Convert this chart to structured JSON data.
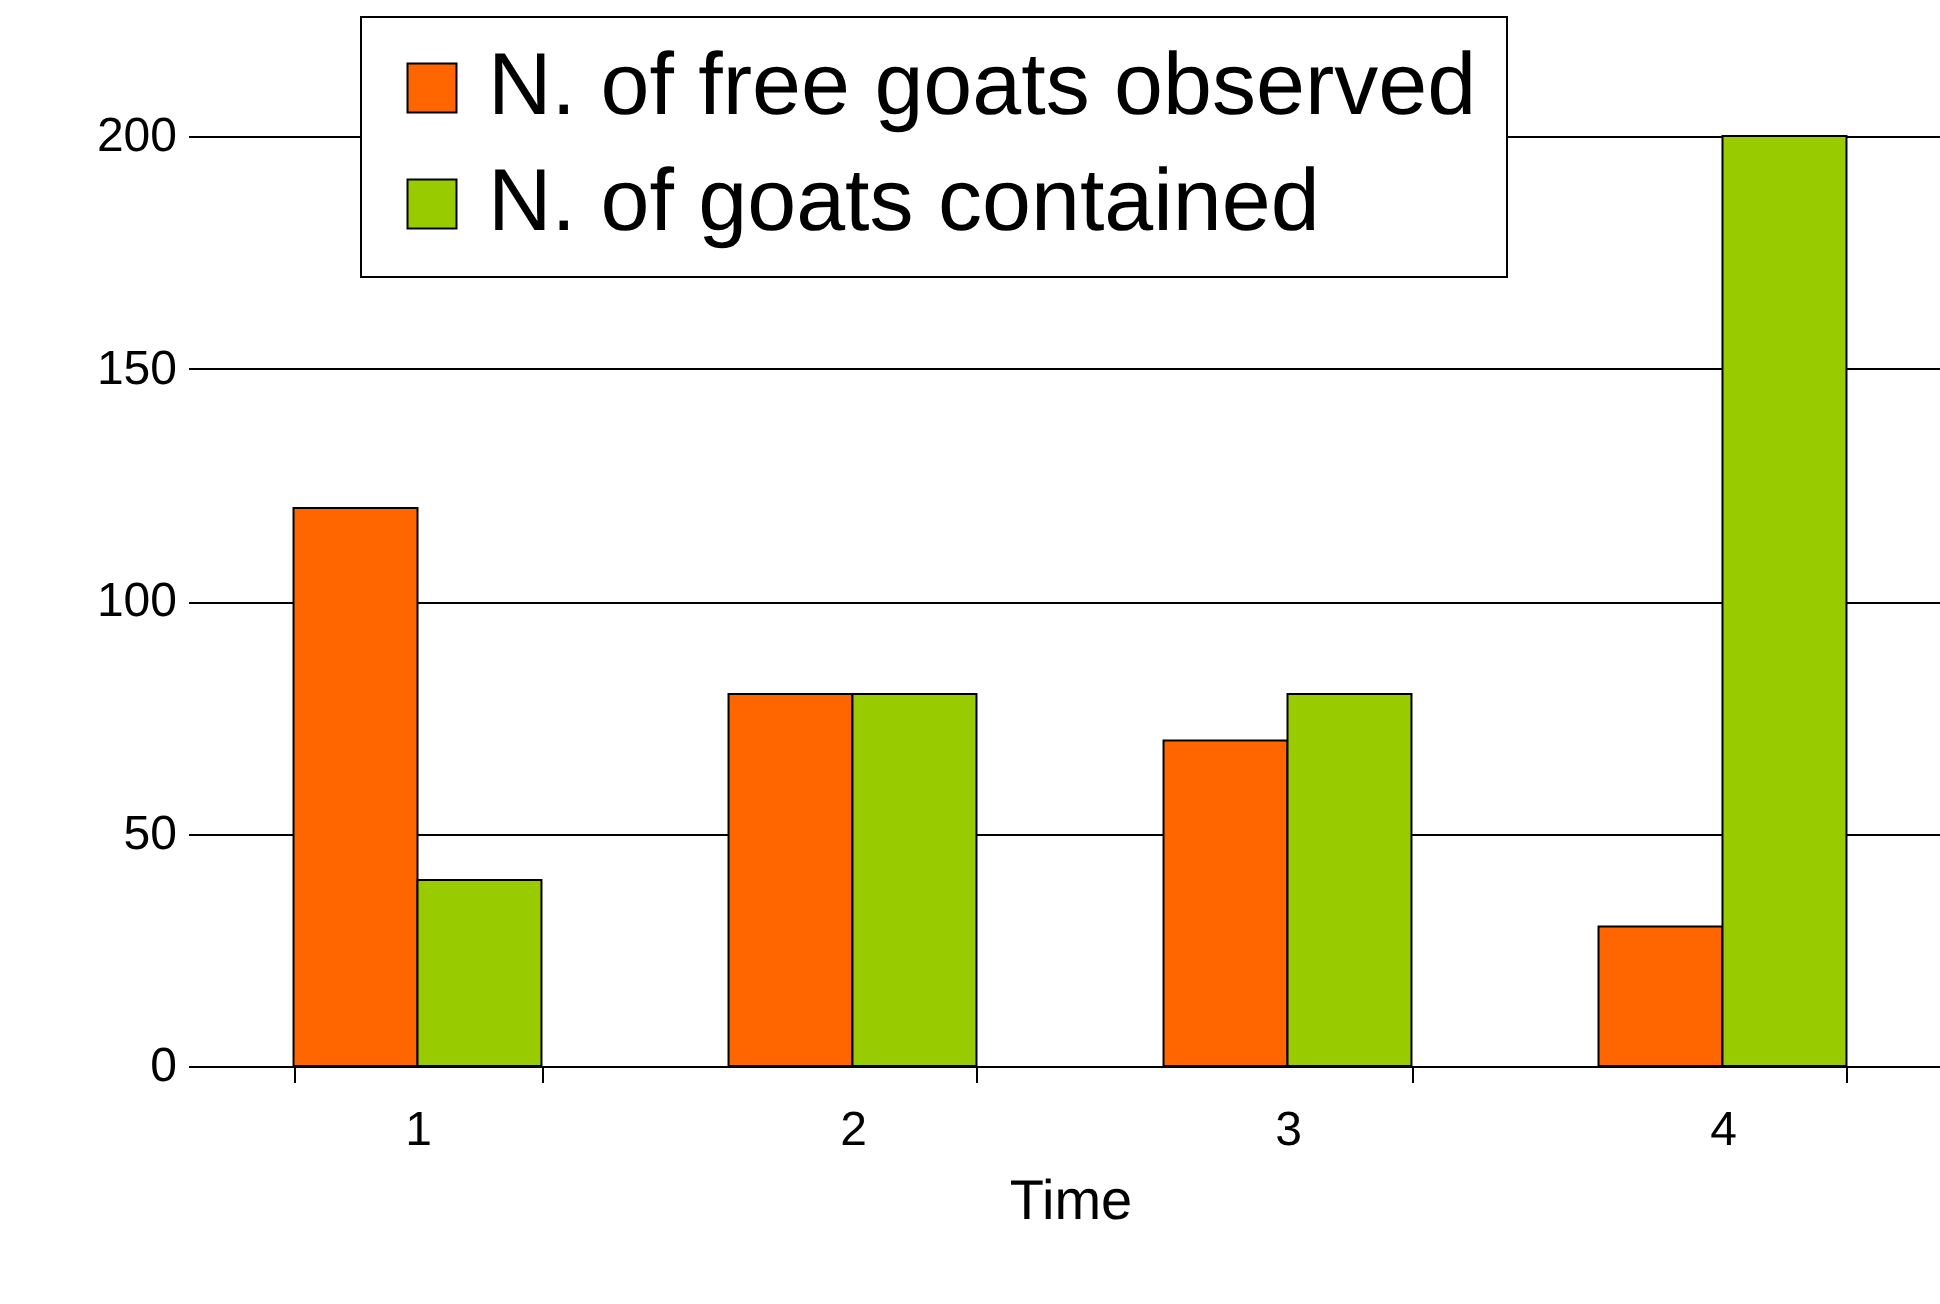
{
  "chart_data": {
    "type": "bar",
    "xlabel": "Time",
    "categories": [
      "1",
      "2",
      "3",
      "4"
    ],
    "series": [
      {
        "name": "N. of free goats observed",
        "color": "#ff6600",
        "values": [
          120,
          80,
          70,
          30
        ]
      },
      {
        "name": "N. of goats contained",
        "color": "#99cc00",
        "values": [
          40,
          80,
          80,
          200
        ]
      }
    ],
    "ylim": [
      0,
      200
    ],
    "yticks": [
      0,
      50,
      100,
      150,
      200
    ],
    "grid": "y",
    "legend": "top"
  }
}
